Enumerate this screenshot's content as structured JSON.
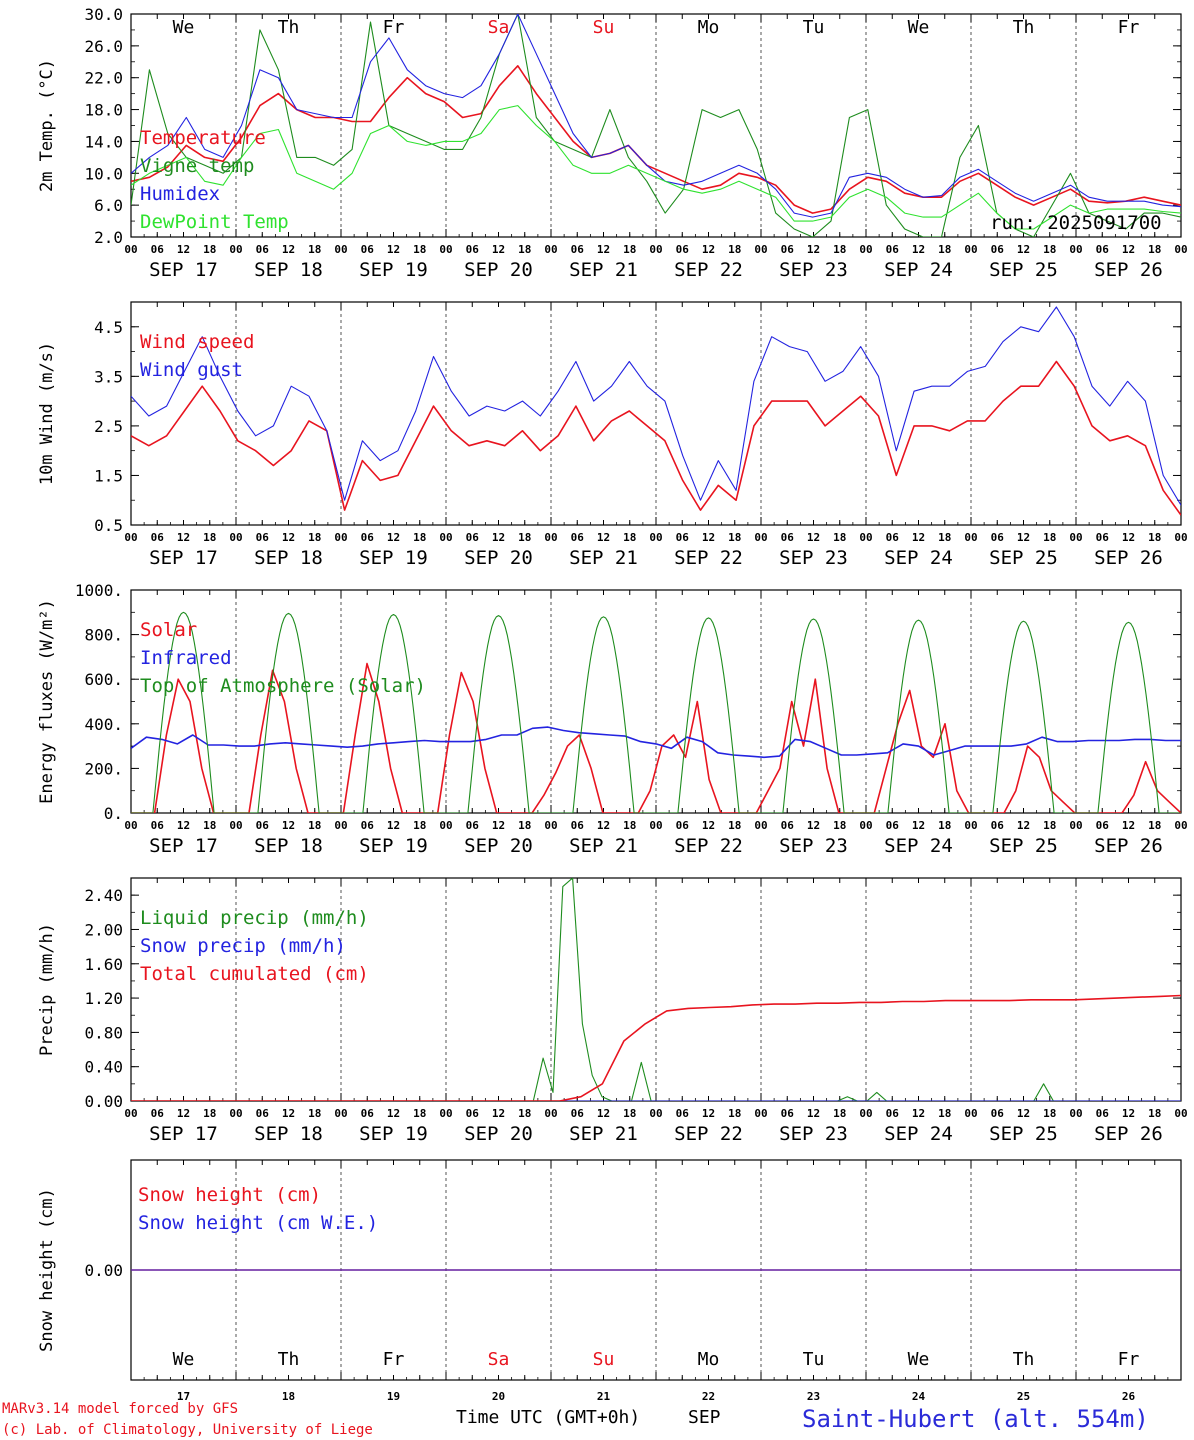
{
  "chart_data": [
    {
      "type": "line",
      "panel": "temperature",
      "ylabel": "2m Temp. (°C)",
      "ylim": [
        2,
        30
      ],
      "yticks": [
        "30.0",
        "26.0",
        "22.0",
        "18.0",
        "14.0",
        "10.0",
        "6.0",
        "2.0"
      ],
      "days": [
        "We",
        "Th",
        "Fr",
        "Sa",
        "Su",
        "Mo",
        "Tu",
        "We",
        "Th",
        "Fr"
      ],
      "day_colors": [
        "#000000",
        "#000000",
        "#000000",
        "#e8141f",
        "#e8141f",
        "#000000",
        "#000000",
        "#000000",
        "#000000",
        "#000000"
      ],
      "run_label": "run: 2025091700",
      "series": [
        {
          "name": "Temperature",
          "color": "#e8141f",
          "width": 1.6,
          "values": [
            9,
            9.5,
            10.8,
            13.5,
            12,
            11.5,
            14.5,
            18.5,
            20,
            18,
            17,
            17,
            16.5,
            16.5,
            19.5,
            22,
            20,
            19,
            17,
            17.5,
            21,
            23.5,
            20,
            17,
            14,
            12,
            12.5,
            13.5,
            11,
            10,
            9,
            8,
            8.5,
            10,
            9.5,
            8.5,
            6,
            5,
            5.5,
            8,
            9.5,
            9,
            7.5,
            7,
            7,
            9,
            10,
            8.5,
            7,
            6,
            7,
            8,
            6.5,
            6.3,
            6.5,
            7,
            6.5,
            6
          ]
        },
        {
          "name": "Vigne temp",
          "color": "#1e8c1e",
          "width": 1.1,
          "values": [
            6,
            23,
            15,
            12,
            11,
            10,
            12,
            28,
            23,
            12,
            12,
            11,
            13,
            29,
            16,
            15,
            14,
            13,
            13,
            17,
            25,
            30,
            17,
            14,
            13,
            12,
            18,
            12,
            9,
            5,
            8,
            18,
            17,
            18,
            13,
            5,
            3,
            2,
            4,
            17,
            18,
            6,
            3,
            2,
            2,
            12,
            16,
            5,
            3,
            2,
            6,
            10,
            5,
            4,
            3,
            5,
            5,
            4.5
          ]
        },
        {
          "name": "Humidex",
          "color": "#2323e0",
          "width": 1.1,
          "values": [
            10,
            12,
            13.5,
            17,
            13,
            12,
            16,
            23,
            22,
            18,
            17.5,
            17,
            17,
            24,
            27,
            23,
            21,
            20,
            19.5,
            21,
            25,
            30,
            25,
            20,
            15,
            12,
            12.5,
            13.5,
            11,
            9,
            8.5,
            9,
            10,
            11,
            10,
            8,
            5,
            4.5,
            5,
            9.5,
            10,
            9.5,
            8,
            7,
            7.2,
            9.5,
            10.5,
            9,
            7.5,
            6.5,
            7.5,
            8.5,
            7,
            6.5,
            6.5,
            6.5,
            6,
            5.8
          ]
        },
        {
          "name": "DewPoint Temp",
          "color": "#2fe22f",
          "width": 1.1,
          "values": [
            8.5,
            10,
            11,
            12,
            9,
            8.5,
            12,
            15,
            15.5,
            10,
            9,
            8,
            10,
            15,
            16,
            14,
            13.5,
            14,
            14,
            15,
            18,
            18.5,
            16,
            14,
            11,
            10,
            10,
            11,
            10,
            9,
            8,
            7.5,
            8,
            9,
            8,
            7,
            4,
            4,
            4.5,
            7,
            8,
            7,
            5,
            4.5,
            4.5,
            6,
            7.5,
            5,
            3,
            3,
            4.5,
            6,
            5,
            5.5,
            5.5,
            5.5,
            5.2,
            5
          ]
        }
      ]
    },
    {
      "type": "line",
      "panel": "wind",
      "ylabel": "10m Wind (m/s)",
      "ylim": [
        0.5,
        5.0
      ],
      "yticks": [
        "4.5",
        "3.5",
        "2.5",
        "1.5",
        "0.5"
      ],
      "series": [
        {
          "name": "Wind speed",
          "color": "#e8141f",
          "width": 1.6,
          "values": [
            2.3,
            2.1,
            2.3,
            2.8,
            3.3,
            2.8,
            2.2,
            2.0,
            1.7,
            2.0,
            2.6,
            2.4,
            0.8,
            1.8,
            1.4,
            1.5,
            2.2,
            2.9,
            2.4,
            2.1,
            2.2,
            2.1,
            2.4,
            2.0,
            2.3,
            2.9,
            2.2,
            2.6,
            2.8,
            2.5,
            2.2,
            1.4,
            0.8,
            1.3,
            1.0,
            2.5,
            3.0,
            3.0,
            3.0,
            2.5,
            2.8,
            3.1,
            2.7,
            1.5,
            2.5,
            2.5,
            2.4,
            2.6,
            2.6,
            3.0,
            3.3,
            3.3,
            3.8,
            3.3,
            2.5,
            2.2,
            2.3,
            2.1,
            1.2,
            0.7
          ]
        },
        {
          "name": "Wind gust",
          "color": "#2323e0",
          "width": 1.1,
          "values": [
            3.1,
            2.7,
            2.9,
            3.6,
            4.3,
            3.5,
            2.8,
            2.3,
            2.5,
            3.3,
            3.1,
            2.4,
            1.0,
            2.2,
            1.8,
            2.0,
            2.8,
            3.9,
            3.2,
            2.7,
            2.9,
            2.8,
            3.0,
            2.7,
            3.2,
            3.8,
            3.0,
            3.3,
            3.8,
            3.3,
            3.0,
            1.9,
            1.0,
            1.8,
            1.2,
            3.4,
            4.3,
            4.1,
            4.0,
            3.4,
            3.6,
            4.1,
            3.5,
            2.0,
            3.2,
            3.3,
            3.3,
            3.6,
            3.7,
            4.2,
            4.5,
            4.4,
            4.9,
            4.3,
            3.3,
            2.9,
            3.4,
            3.0,
            1.5,
            0.9
          ]
        }
      ]
    },
    {
      "type": "line",
      "panel": "energy",
      "ylabel": "Energy fluxes (W/m²)",
      "ylim": [
        0,
        1000
      ],
      "yticks": [
        "1000.",
        "800.",
        "600.",
        "400.",
        "200.",
        "0."
      ],
      "series": [
        {
          "name": "Solar",
          "color": "#e8141f",
          "width": 1.6,
          "values": [
            0,
            0,
            0,
            350,
            600,
            500,
            200,
            0,
            0,
            0,
            0,
            350,
            640,
            500,
            200,
            0,
            0,
            0,
            0,
            350,
            670,
            500,
            200,
            0,
            0,
            0,
            0,
            350,
            630,
            500,
            200,
            0,
            0,
            0,
            0,
            80,
            180,
            300,
            350,
            200,
            0,
            0,
            0,
            0,
            100,
            300,
            350,
            250,
            500,
            150,
            0,
            0,
            0,
            0,
            100,
            200,
            500,
            300,
            600,
            200,
            0,
            0,
            0,
            0,
            200,
            400,
            550,
            300,
            250,
            400,
            100,
            0,
            0,
            0,
            0,
            100,
            300,
            250,
            100,
            50,
            0,
            0,
            0,
            0,
            0,
            80,
            230,
            100,
            50,
            0
          ]
        },
        {
          "name": "Infrared",
          "color": "#2323e0",
          "width": 1.6,
          "values": [
            290,
            340,
            330,
            310,
            350,
            305,
            305,
            300,
            300,
            310,
            315,
            310,
            305,
            300,
            295,
            300,
            310,
            315,
            320,
            325,
            320,
            320,
            320,
            330,
            350,
            350,
            380,
            385,
            370,
            360,
            355,
            350,
            345,
            320,
            310,
            290,
            340,
            320,
            270,
            260,
            255,
            250,
            255,
            330,
            320,
            290,
            260,
            260,
            265,
            270,
            310,
            300,
            260,
            280,
            300,
            300,
            300,
            300,
            310,
            340,
            320,
            320,
            325,
            325,
            325,
            330,
            330,
            325,
            325
          ]
        },
        {
          "name": "Top of Atmosphere (Solar)",
          "color": "#1e8c1e",
          "width": 1.1,
          "peaks": [
            900,
            895,
            890,
            885,
            880,
            875,
            870,
            865,
            860,
            855
          ]
        }
      ]
    },
    {
      "type": "line",
      "panel": "precip",
      "ylabel": "Precip (mm/h)",
      "ylim": [
        0,
        2.6
      ],
      "yticks": [
        "2.40",
        "2.00",
        "1.60",
        "1.20",
        "0.80",
        "0.40",
        "0.00"
      ],
      "series": [
        {
          "name": "Liquid precip (mm/h)",
          "color": "#1e8c1e",
          "width": 1.1,
          "values": [
            0,
            0,
            0,
            0,
            0,
            0,
            0,
            0,
            0,
            0,
            0,
            0,
            0,
            0,
            0,
            0,
            0,
            0,
            0,
            0,
            0,
            0,
            0,
            0,
            0,
            0,
            0,
            0,
            0,
            0,
            0,
            0,
            0,
            0,
            0,
            0,
            0,
            0,
            0,
            0,
            0,
            0,
            0.5,
            0.1,
            2.5,
            2.6,
            0.9,
            0.3,
            0.05,
            0,
            0,
            0,
            0.45,
            0,
            0,
            0,
            0,
            0,
            0,
            0,
            0,
            0,
            0,
            0,
            0,
            0,
            0,
            0,
            0,
            0,
            0,
            0,
            0,
            0.05,
            0,
            0,
            0.1,
            0,
            0,
            0,
            0,
            0,
            0,
            0,
            0,
            0,
            0,
            0,
            0,
            0,
            0,
            0,
            0,
            0.2,
            0,
            0,
            0,
            0,
            0,
            0,
            0,
            0,
            0,
            0,
            0,
            0,
            0,
            0
          ]
        },
        {
          "name": "Snow precip (mm/h)",
          "color": "#2323e0",
          "width": 1.1,
          "values": [
            0,
            0
          ]
        },
        {
          "name": "Total cumulated (cm)",
          "color": "#e8141f",
          "width": 1.6,
          "values": [
            0,
            0,
            0,
            0,
            0,
            0,
            0,
            0,
            0,
            0,
            0,
            0,
            0,
            0,
            0,
            0,
            0,
            0,
            0,
            0,
            0,
            0.05,
            0.2,
            0.7,
            0.9,
            1.05,
            1.08,
            1.09,
            1.1,
            1.12,
            1.13,
            1.13,
            1.14,
            1.14,
            1.15,
            1.15,
            1.16,
            1.16,
            1.17,
            1.17,
            1.17,
            1.17,
            1.18,
            1.18,
            1.18,
            1.19,
            1.2,
            1.21,
            1.22,
            1.23
          ]
        }
      ]
    },
    {
      "type": "line",
      "panel": "snow",
      "ylabel": "Snow height (cm)",
      "ylim": [
        -1,
        1
      ],
      "yticks": [
        "0.00"
      ],
      "series": [
        {
          "name": "Snow height (cm)",
          "color": "#e8141f",
          "width": 1.6,
          "values": [
            0,
            0
          ]
        },
        {
          "name": "Snow height (cm W.E.)",
          "color": "#2323e0",
          "width": 1.1,
          "values": [
            0,
            0
          ]
        }
      ]
    }
  ],
  "x_axis": {
    "hour_ticks": [
      "00",
      "06",
      "12",
      "18"
    ],
    "date_labels": [
      "SEP 17",
      "SEP 18",
      "SEP 19",
      "SEP 20",
      "SEP 21",
      "SEP 22",
      "SEP 23",
      "SEP 24",
      "SEP 25",
      "SEP 26"
    ],
    "day_numbers": [
      "17",
      "18",
      "19",
      "20",
      "21",
      "22",
      "23",
      "24",
      "25",
      "26"
    ]
  },
  "footer": {
    "model_line": "MARv3.14 model forced by GFS",
    "copyright_line": "(c) Lab. of Climatology, University of Liege",
    "time_label": "Time UTC (GMT+0h)",
    "month_label": "SEP",
    "station": "Saint-Hubert (alt. 554m)"
  }
}
